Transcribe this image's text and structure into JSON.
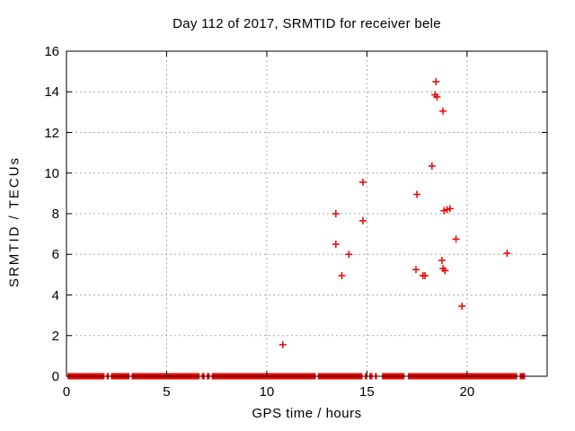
{
  "chart_data": {
    "type": "scatter",
    "title": "Day 112 of 2017, SRMTID for receiver bele",
    "xlabel": "GPS time / hours",
    "ylabel": "SRMTID / TECUs",
    "xlim": [
      0,
      24
    ],
    "ylim": [
      0,
      16
    ],
    "xticks": [
      0,
      5,
      10,
      15,
      20
    ],
    "yticks": [
      0,
      2,
      4,
      6,
      8,
      10,
      12,
      14,
      16
    ],
    "grid": true,
    "legend": "none",
    "marker": "plus",
    "colors": {
      "marker": "#ee0000",
      "grid": "#aaaaaa",
      "axis": "#000000",
      "text": "#000000",
      "background": "#ffffff"
    },
    "series": [
      {
        "name": "SRMTID",
        "points": [
          [
            10.8,
            1.55
          ],
          [
            13.45,
            6.5
          ],
          [
            13.45,
            8.0
          ],
          [
            13.75,
            4.95
          ],
          [
            14.1,
            6.0
          ],
          [
            14.8,
            7.65
          ],
          [
            14.8,
            9.55
          ],
          [
            17.45,
            5.25
          ],
          [
            17.5,
            8.95
          ],
          [
            17.8,
            4.95
          ],
          [
            17.9,
            4.95
          ],
          [
            18.25,
            10.35
          ],
          [
            18.4,
            13.85
          ],
          [
            18.45,
            14.5
          ],
          [
            18.5,
            13.75
          ],
          [
            18.75,
            5.7
          ],
          [
            18.8,
            5.3
          ],
          [
            18.8,
            13.05
          ],
          [
            18.9,
            5.2
          ],
          [
            18.85,
            8.15
          ],
          [
            19.0,
            8.2
          ],
          [
            19.15,
            8.25
          ],
          [
            19.45,
            6.75
          ],
          [
            19.75,
            3.45
          ],
          [
            22.0,
            6.05
          ]
        ]
      }
    ],
    "y0_band_segments": [
      [
        0.05,
        1.9
      ],
      [
        2.0,
        2.12
      ],
      [
        2.22,
        3.15
      ],
      [
        3.25,
        6.65
      ],
      [
        6.75,
        6.9
      ],
      [
        7.0,
        7.15
      ],
      [
        7.25,
        12.45
      ],
      [
        12.55,
        14.78
      ],
      [
        14.9,
        15.02
      ],
      [
        15.12,
        15.28
      ],
      [
        15.4,
        15.5
      ],
      [
        15.75,
        16.88
      ],
      [
        17.05,
        22.5
      ],
      [
        22.63,
        22.9
      ]
    ]
  }
}
